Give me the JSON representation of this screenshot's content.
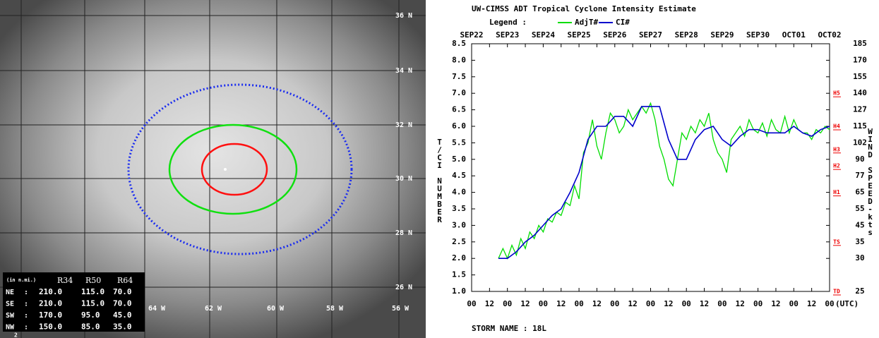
{
  "satellite": {
    "lat_labels": [
      "36 N",
      "34 N",
      "32 N",
      "30 N",
      "28 N",
      "26 N"
    ],
    "lon_labels": [
      "64 W",
      "62 W",
      "60 W",
      "58 W",
      "56 W"
    ],
    "wind_radii": {
      "unit": "(in n.mi.)",
      "columns": [
        "R34",
        "R50",
        "R64"
      ],
      "rows": [
        {
          "quadrant": "NE",
          "values": [
            "210.0",
            "115.0",
            "70.0"
          ]
        },
        {
          "quadrant": "SE",
          "values": [
            "210.0",
            "115.0",
            "70.0"
          ]
        },
        {
          "quadrant": "SW",
          "values": [
            "170.0",
            "95.0",
            "45.0"
          ]
        },
        {
          "quadrant": "NW",
          "values": [
            "150.0",
            "85.0",
            "35.0"
          ]
        }
      ]
    },
    "footer": "2"
  },
  "chart_data": {
    "type": "line",
    "title": "UW-CIMSS ADT Tropical Cyclone Intensity Estimate",
    "legend_label": "Legend :",
    "ylabel": "T/CI NUMBER",
    "y2label": "WIND SPEED-kts",
    "xunit": "(UTC)",
    "storm_name": "STORM NAME : 18L",
    "xlim": [
      0,
      240
    ],
    "xticks": [
      {
        "value": 0,
        "label": "00"
      },
      {
        "value": 12,
        "label": "12"
      },
      {
        "value": 24,
        "label": "00"
      },
      {
        "value": 36,
        "label": "12"
      },
      {
        "value": 48,
        "label": "00"
      },
      {
        "value": 60,
        "label": "12"
      },
      {
        "value": 72,
        "label": "00"
      },
      {
        "value": 84,
        "label": "12"
      },
      {
        "value": 96,
        "label": "00"
      },
      {
        "value": 108,
        "label": "12"
      },
      {
        "value": 120,
        "label": "00"
      },
      {
        "value": 132,
        "label": "12"
      },
      {
        "value": 144,
        "label": "00"
      },
      {
        "value": 156,
        "label": "12"
      },
      {
        "value": 168,
        "label": "00"
      },
      {
        "value": 180,
        "label": "12"
      },
      {
        "value": 192,
        "label": "00"
      },
      {
        "value": 204,
        "label": "12"
      },
      {
        "value": 216,
        "label": "00"
      },
      {
        "value": 228,
        "label": "12"
      },
      {
        "value": 240,
        "label": "00"
      }
    ],
    "date_ticks": [
      {
        "value": 0,
        "label": "SEP22"
      },
      {
        "value": 24,
        "label": "SEP23"
      },
      {
        "value": 48,
        "label": "SEP24"
      },
      {
        "value": 72,
        "label": "SEP25"
      },
      {
        "value": 96,
        "label": "SEP26"
      },
      {
        "value": 120,
        "label": "SEP27"
      },
      {
        "value": 144,
        "label": "SEP28"
      },
      {
        "value": 168,
        "label": "SEP29"
      },
      {
        "value": 192,
        "label": "SEP30"
      },
      {
        "value": 216,
        "label": "OCT01"
      },
      {
        "value": 240,
        "label": "OCT02"
      }
    ],
    "ylim": [
      1.0,
      8.5
    ],
    "yticks": [
      {
        "value": 1,
        "label": "1.0"
      },
      {
        "value": 1.5,
        "label": "1.5"
      },
      {
        "value": 2,
        "label": "2.0"
      },
      {
        "value": 2.5,
        "label": "2.5"
      },
      {
        "value": 3,
        "label": "3.0"
      },
      {
        "value": 3.5,
        "label": "3.5"
      },
      {
        "value": 4,
        "label": "4.0"
      },
      {
        "value": 4.5,
        "label": "4.5"
      },
      {
        "value": 5,
        "label": "5.0"
      },
      {
        "value": 5.5,
        "label": "5.5"
      },
      {
        "value": 6,
        "label": "6.0"
      },
      {
        "value": 6.5,
        "label": "6.5"
      },
      {
        "value": 7,
        "label": "7.0"
      },
      {
        "value": 7.5,
        "label": "7.5"
      },
      {
        "value": 8,
        "label": "8.0"
      },
      {
        "value": 8.5,
        "label": "8.5"
      }
    ],
    "y2ticks": [
      25,
      30,
      35,
      45,
      55,
      65,
      77,
      90,
      102,
      115,
      127,
      140,
      155,
      170,
      185
    ],
    "y2tick_tnumbers": [
      1.0,
      2.0,
      2.5,
      3.0,
      3.5,
      4.0,
      4.5,
      5.0,
      5.5,
      6.0,
      6.5,
      7.0,
      7.5,
      8.0,
      8.5
    ],
    "intensity_markers": [
      {
        "label": "H5",
        "at": 7.0
      },
      {
        "label": "H4",
        "at": 6.0
      },
      {
        "label": "H3",
        "at": 5.3
      },
      {
        "label": "H2",
        "at": 4.8
      },
      {
        "label": "H1",
        "at": 4.0
      },
      {
        "label": "TS",
        "at": 2.5
      },
      {
        "label": "TD",
        "at": 1.0
      }
    ],
    "series": [
      {
        "name": "AdjT#",
        "color": "#00dd00",
        "x": [
          18,
          21,
          24,
          27,
          30,
          33,
          36,
          39,
          42,
          45,
          48,
          51,
          54,
          57,
          60,
          63,
          66,
          69,
          72,
          75,
          78,
          81,
          84,
          87,
          90,
          93,
          96,
          99,
          102,
          105,
          108,
          111,
          114,
          117,
          120,
          123,
          126,
          129,
          132,
          135,
          138,
          141,
          144,
          147,
          150,
          153,
          156,
          159,
          162,
          165,
          168,
          171,
          174,
          177,
          180,
          183,
          186,
          189,
          192,
          195,
          198,
          201,
          204,
          207,
          210,
          213,
          216,
          219,
          222,
          225,
          228,
          231,
          234,
          237,
          240
        ],
        "values": [
          2.0,
          2.3,
          2.0,
          2.4,
          2.1,
          2.6,
          2.3,
          2.8,
          2.6,
          3.0,
          2.8,
          3.2,
          3.1,
          3.4,
          3.3,
          3.7,
          3.6,
          4.2,
          3.8,
          5.2,
          5.5,
          6.2,
          5.4,
          5.0,
          5.8,
          6.4,
          6.2,
          5.8,
          6.0,
          6.5,
          6.2,
          6.4,
          6.6,
          6.4,
          6.7,
          6.2,
          5.4,
          5.0,
          4.4,
          4.2,
          5.0,
          5.8,
          5.6,
          6.0,
          5.8,
          6.2,
          6.0,
          6.4,
          5.6,
          5.2,
          5.0,
          4.6,
          5.6,
          5.8,
          6.0,
          5.7,
          6.2,
          5.9,
          5.8,
          6.1,
          5.7,
          6.2,
          5.9,
          5.8,
          6.3,
          5.8,
          6.2,
          5.9,
          5.8,
          5.8,
          5.6,
          5.9,
          5.8,
          6.0,
          5.9
        ]
      },
      {
        "name": "CI#",
        "color": "#0000cc",
        "x": [
          18,
          24,
          30,
          36,
          42,
          48,
          54,
          60,
          66,
          72,
          78,
          84,
          90,
          96,
          102,
          108,
          114,
          120,
          126,
          132,
          138,
          144,
          150,
          156,
          162,
          168,
          174,
          180,
          186,
          192,
          198,
          204,
          210,
          216,
          222,
          228,
          234,
          240
        ],
        "values": [
          2.0,
          2.0,
          2.2,
          2.5,
          2.7,
          3.0,
          3.3,
          3.5,
          4.0,
          4.6,
          5.6,
          6.0,
          6.0,
          6.3,
          6.3,
          6.0,
          6.6,
          6.6,
          6.6,
          5.6,
          5.0,
          5.0,
          5.6,
          5.9,
          6.0,
          5.6,
          5.4,
          5.7,
          5.9,
          5.9,
          5.8,
          5.8,
          5.8,
          6.0,
          5.8,
          5.7,
          5.9,
          6.0
        ]
      }
    ]
  }
}
